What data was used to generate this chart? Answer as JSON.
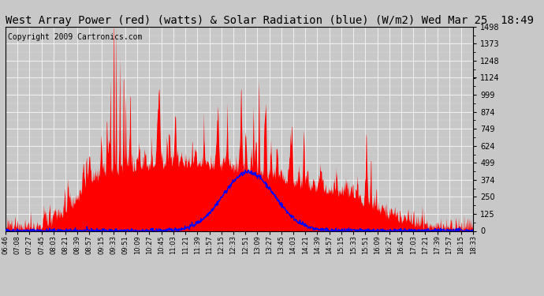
{
  "title": "West Array Power (red) (watts) & Solar Radiation (blue) (W/m2) Wed Mar 25  18:49",
  "copyright": "Copyright 2009 Cartronics.com",
  "background_color": "#c8c8c8",
  "plot_bg_color": "#c8c8c8",
  "x_labels": [
    "06:46",
    "07:08",
    "07:27",
    "07:45",
    "08:03",
    "08:21",
    "08:39",
    "08:57",
    "09:15",
    "09:33",
    "09:51",
    "10:09",
    "10:27",
    "10:45",
    "11:03",
    "11:21",
    "11:39",
    "11:57",
    "12:15",
    "12:33",
    "12:51",
    "13:09",
    "13:27",
    "13:45",
    "14:03",
    "14:21",
    "14:39",
    "14:57",
    "15:15",
    "15:33",
    "15:51",
    "16:09",
    "16:27",
    "16:45",
    "17:03",
    "17:21",
    "17:39",
    "17:57",
    "18:15",
    "18:33"
  ],
  "y_ticks": [
    0.0,
    124.8,
    249.7,
    374.5,
    499.4,
    624.2,
    749.1,
    873.9,
    998.8,
    1123.6,
    1248.5,
    1373.3,
    1498.2
  ],
  "y_max": 1498.2,
  "y_min": 0.0,
  "red_color": "#ff0000",
  "blue_color": "#0000ff",
  "grid_color": "#ffffff",
  "title_fontsize": 10,
  "copyright_fontsize": 7
}
